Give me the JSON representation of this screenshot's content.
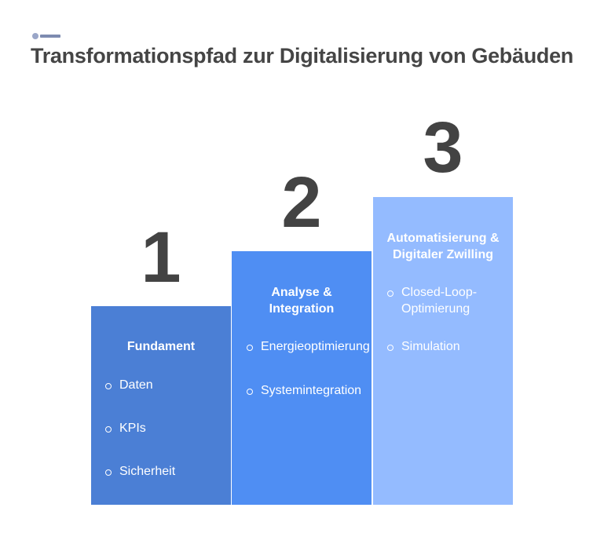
{
  "header": {
    "title": "Transformationspfad zur Digitalisierung von Gebäuden"
  },
  "steps": [
    {
      "number": "1",
      "heading": "Fundament",
      "items": [
        "Daten",
        "KPIs",
        "Sicherheit"
      ]
    },
    {
      "number": "2",
      "heading": "Analyse & Integration",
      "items": [
        "Energieoptimierung",
        "Systemintegration"
      ]
    },
    {
      "number": "3",
      "heading": "Automatisierung & Digitaler Zwilling",
      "items": [
        "Closed-Loop-Optimierung",
        "Simulation"
      ]
    }
  ]
}
